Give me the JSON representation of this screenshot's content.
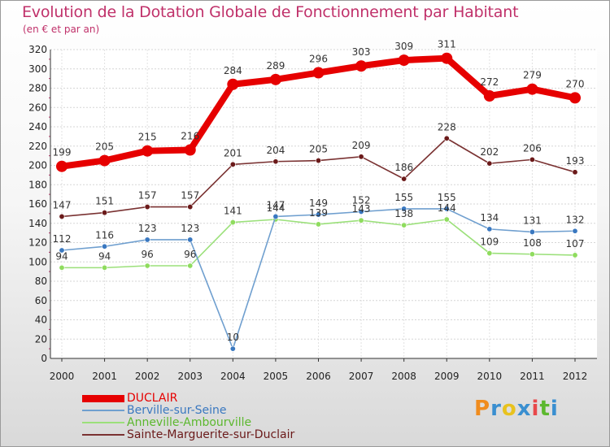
{
  "chart_data": {
    "type": "line",
    "title": "Evolution de la Dotation Globale de Fonctionnement par Habitant",
    "subtitle": "(en € et par an)",
    "xlabel": "",
    "ylabel": "",
    "ylim": [
      0,
      320
    ],
    "yticks": [
      0,
      20,
      40,
      60,
      80,
      100,
      120,
      140,
      160,
      180,
      200,
      220,
      240,
      260,
      280,
      300,
      320
    ],
    "categories": [
      "2000",
      "2001",
      "2002",
      "2003",
      "2004",
      "2005",
      "2006",
      "2007",
      "2008",
      "2009",
      "2010",
      "2011",
      "2012"
    ],
    "grid": true,
    "legend_position": "bottom-left",
    "series": [
      {
        "name": "DUCLAIR",
        "color": "#e60000",
        "values": [
          199,
          205,
          215,
          216,
          284,
          289,
          296,
          303,
          309,
          311,
          272,
          279,
          270
        ]
      },
      {
        "name": "Berville-sur-Seine",
        "color": "#6f9fcf",
        "marker_color": "#3a78c0",
        "values": [
          112,
          116,
          123,
          123,
          10,
          147,
          149,
          152,
          155,
          155,
          134,
          131,
          132
        ]
      },
      {
        "name": "Anneville-Ambourville",
        "color": "#9be07a",
        "marker_color": "#8fdc5e",
        "values": [
          94,
          94,
          96,
          96,
          141,
          144,
          139,
          143,
          138,
          144,
          109,
          108,
          107
        ]
      },
      {
        "name": "Sainte-Marguerite-sur-Duclair",
        "color": "#7a3232",
        "marker_color": "#6b1a1a",
        "values": [
          147,
          151,
          157,
          157,
          201,
          204,
          205,
          209,
          186,
          228,
          202,
          206,
          193
        ]
      }
    ]
  },
  "legend_colors": {
    "DUCLAIR": "#e60000",
    "Berville-sur-Seine": "#3a78c0",
    "Anneville-Ambourville": "#5cb82e",
    "Sainte-Marguerite-sur-Duclair": "#6b1a1a"
  },
  "logo": {
    "text": "Proxiti",
    "letters": [
      "P",
      "r",
      "o",
      "x",
      "i",
      "t",
      "i"
    ],
    "colors": [
      "#f08c1e",
      "#3a8fd0",
      "#e8c21e",
      "#3a8fd0",
      "#e8484a",
      "#5cb82e",
      "#3a8fd0"
    ]
  }
}
